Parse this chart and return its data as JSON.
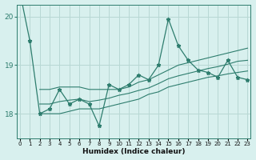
{
  "x": [
    0,
    1,
    2,
    3,
    4,
    5,
    6,
    7,
    8,
    9,
    10,
    11,
    12,
    13,
    14,
    15,
    16,
    17,
    18,
    19,
    20,
    21,
    22,
    23
  ],
  "y_main": [
    20.5,
    19.5,
    18.0,
    18.1,
    18.5,
    18.2,
    18.3,
    18.2,
    17.75,
    18.6,
    18.5,
    18.6,
    18.8,
    18.7,
    19.0,
    19.95,
    19.4,
    19.1,
    18.9,
    18.85,
    18.75,
    19.1,
    18.75,
    18.7
  ],
  "y_high": [
    null,
    null,
    18.5,
    18.5,
    18.55,
    18.55,
    18.55,
    18.5,
    18.5,
    18.5,
    18.5,
    18.55,
    18.65,
    18.7,
    18.8,
    18.9,
    19.0,
    19.05,
    19.1,
    19.15,
    19.2,
    19.25,
    19.3,
    19.35
  ],
  "y_low": [
    null,
    null,
    18.0,
    18.0,
    18.0,
    18.05,
    18.1,
    18.1,
    18.1,
    18.15,
    18.2,
    18.25,
    18.3,
    18.4,
    18.45,
    18.55,
    18.6,
    18.65,
    18.7,
    18.75,
    18.78,
    18.82,
    18.85,
    18.88
  ],
  "y_avg": [
    null,
    null,
    18.2,
    18.2,
    18.25,
    18.28,
    18.3,
    18.25,
    18.28,
    18.32,
    18.38,
    18.42,
    18.48,
    18.53,
    18.62,
    18.72,
    18.78,
    18.83,
    18.88,
    18.93,
    18.97,
    19.02,
    19.08,
    19.1
  ],
  "color": "#2e7d6e",
  "bg_color": "#d8f0ee",
  "grid_color": "#b8d8d4",
  "ylim": [
    17.5,
    20.25
  ],
  "yticks": [
    18,
    19,
    20
  ],
  "xlim": [
    -0.3,
    23.3
  ],
  "xlabel": "Humidex (Indice chaleur)"
}
